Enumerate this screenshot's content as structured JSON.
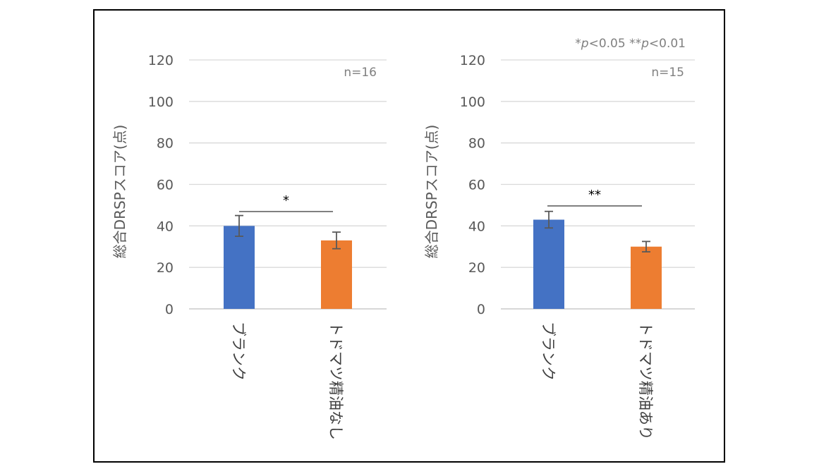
{
  "legend_note": "*p<0.05 **p<0.01",
  "legend_note_parts": [
    "*",
    "p",
    "<0.05 **",
    "p",
    "<0.01"
  ],
  "colors": {
    "blank": "#4472C4",
    "oil": "#ED7D31",
    "grid": "#D9D9D9",
    "axis": "#BFBFBF"
  },
  "chart_data": [
    {
      "type": "bar",
      "ylabel": "総合DRSPスコア(点)",
      "ylim": [
        0,
        120
      ],
      "yticks": [
        0,
        20,
        40,
        60,
        80,
        100,
        120
      ],
      "categories": [
        "ブランク",
        "トドマツ精油なし"
      ],
      "values": [
        40,
        33
      ],
      "errors": [
        5,
        4
      ],
      "annotation": "n=16",
      "significance": "*"
    },
    {
      "type": "bar",
      "ylabel": "総合DRSPスコア(点)",
      "ylim": [
        0,
        120
      ],
      "yticks": [
        0,
        20,
        40,
        60,
        80,
        100,
        120
      ],
      "categories": [
        "ブランク",
        "トドマツ精油あり"
      ],
      "values": [
        43,
        30
      ],
      "errors": [
        4,
        2.5
      ],
      "annotation": "n=15",
      "significance": "**"
    }
  ]
}
